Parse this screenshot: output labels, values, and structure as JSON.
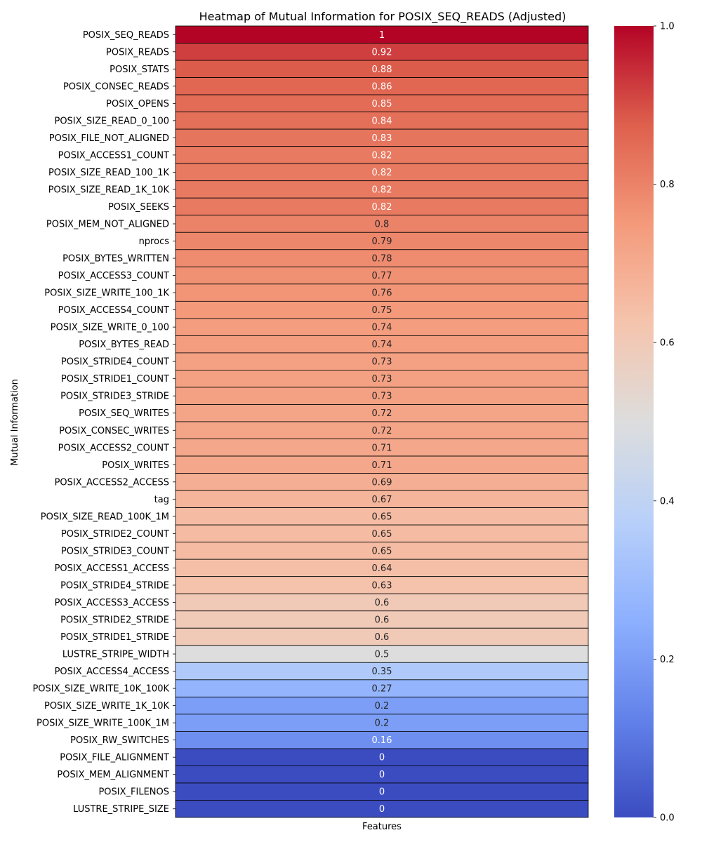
{
  "chart_data": {
    "type": "heatmap",
    "title": "Heatmap of Mutual Information for POSIX_SEQ_READS (Adjusted)",
    "xlabel": "Features",
    "ylabel": "Mutual Information",
    "colormap": "coolwarm",
    "vmin": 0,
    "vmax": 1,
    "colorbar_ticks": [
      "0.0",
      "0.2",
      "0.4",
      "0.6",
      "0.8",
      "1.0"
    ],
    "rows": [
      {
        "label": "POSIX_SEQ_READS",
        "value": 1,
        "text": "1"
      },
      {
        "label": "POSIX_READS",
        "value": 0.92,
        "text": "0.92"
      },
      {
        "label": "POSIX_STATS",
        "value": 0.88,
        "text": "0.88"
      },
      {
        "label": "POSIX_CONSEC_READS",
        "value": 0.86,
        "text": "0.86"
      },
      {
        "label": "POSIX_OPENS",
        "value": 0.85,
        "text": "0.85"
      },
      {
        "label": "POSIX_SIZE_READ_0_100",
        "value": 0.84,
        "text": "0.84"
      },
      {
        "label": "POSIX_FILE_NOT_ALIGNED",
        "value": 0.83,
        "text": "0.83"
      },
      {
        "label": "POSIX_ACCESS1_COUNT",
        "value": 0.82,
        "text": "0.82"
      },
      {
        "label": "POSIX_SIZE_READ_100_1K",
        "value": 0.82,
        "text": "0.82"
      },
      {
        "label": "POSIX_SIZE_READ_1K_10K",
        "value": 0.82,
        "text": "0.82"
      },
      {
        "label": "POSIX_SEEKS",
        "value": 0.82,
        "text": "0.82"
      },
      {
        "label": "POSIX_MEM_NOT_ALIGNED",
        "value": 0.8,
        "text": "0.8"
      },
      {
        "label": "nprocs",
        "value": 0.79,
        "text": "0.79"
      },
      {
        "label": "POSIX_BYTES_WRITTEN",
        "value": 0.78,
        "text": "0.78"
      },
      {
        "label": "POSIX_ACCESS3_COUNT",
        "value": 0.77,
        "text": "0.77"
      },
      {
        "label": "POSIX_SIZE_WRITE_100_1K",
        "value": 0.76,
        "text": "0.76"
      },
      {
        "label": "POSIX_ACCESS4_COUNT",
        "value": 0.75,
        "text": "0.75"
      },
      {
        "label": "POSIX_SIZE_WRITE_0_100",
        "value": 0.74,
        "text": "0.74"
      },
      {
        "label": "POSIX_BYTES_READ",
        "value": 0.74,
        "text": "0.74"
      },
      {
        "label": "POSIX_STRIDE4_COUNT",
        "value": 0.73,
        "text": "0.73"
      },
      {
        "label": "POSIX_STRIDE1_COUNT",
        "value": 0.73,
        "text": "0.73"
      },
      {
        "label": "POSIX_STRIDE3_STRIDE",
        "value": 0.73,
        "text": "0.73"
      },
      {
        "label": "POSIX_SEQ_WRITES",
        "value": 0.72,
        "text": "0.72"
      },
      {
        "label": "POSIX_CONSEC_WRITES",
        "value": 0.72,
        "text": "0.72"
      },
      {
        "label": "POSIX_ACCESS2_COUNT",
        "value": 0.71,
        "text": "0.71"
      },
      {
        "label": "POSIX_WRITES",
        "value": 0.71,
        "text": "0.71"
      },
      {
        "label": "POSIX_ACCESS2_ACCESS",
        "value": 0.69,
        "text": "0.69"
      },
      {
        "label": "tag",
        "value": 0.67,
        "text": "0.67"
      },
      {
        "label": "POSIX_SIZE_READ_100K_1M",
        "value": 0.65,
        "text": "0.65"
      },
      {
        "label": "POSIX_STRIDE2_COUNT",
        "value": 0.65,
        "text": "0.65"
      },
      {
        "label": "POSIX_STRIDE3_COUNT",
        "value": 0.65,
        "text": "0.65"
      },
      {
        "label": "POSIX_ACCESS1_ACCESS",
        "value": 0.64,
        "text": "0.64"
      },
      {
        "label": "POSIX_STRIDE4_STRIDE",
        "value": 0.63,
        "text": "0.63"
      },
      {
        "label": "POSIX_ACCESS3_ACCESS",
        "value": 0.6,
        "text": "0.6"
      },
      {
        "label": "POSIX_STRIDE2_STRIDE",
        "value": 0.6,
        "text": "0.6"
      },
      {
        "label": "POSIX_STRIDE1_STRIDE",
        "value": 0.6,
        "text": "0.6"
      },
      {
        "label": "LUSTRE_STRIPE_WIDTH",
        "value": 0.5,
        "text": "0.5"
      },
      {
        "label": "POSIX_ACCESS4_ACCESS",
        "value": 0.35,
        "text": "0.35"
      },
      {
        "label": "POSIX_SIZE_WRITE_10K_100K",
        "value": 0.27,
        "text": "0.27"
      },
      {
        "label": "POSIX_SIZE_WRITE_1K_10K",
        "value": 0.2,
        "text": "0.2"
      },
      {
        "label": "POSIX_SIZE_WRITE_100K_1M",
        "value": 0.2,
        "text": "0.2"
      },
      {
        "label": "POSIX_RW_SWITCHES",
        "value": 0.16,
        "text": "0.16"
      },
      {
        "label": "POSIX_FILE_ALIGNMENT",
        "value": 0,
        "text": "0"
      },
      {
        "label": "POSIX_MEM_ALIGNMENT",
        "value": 0,
        "text": "0"
      },
      {
        "label": "POSIX_FILENOS",
        "value": 0,
        "text": "0"
      },
      {
        "label": "LUSTRE_STRIPE_SIZE",
        "value": 0,
        "text": "0"
      }
    ]
  }
}
